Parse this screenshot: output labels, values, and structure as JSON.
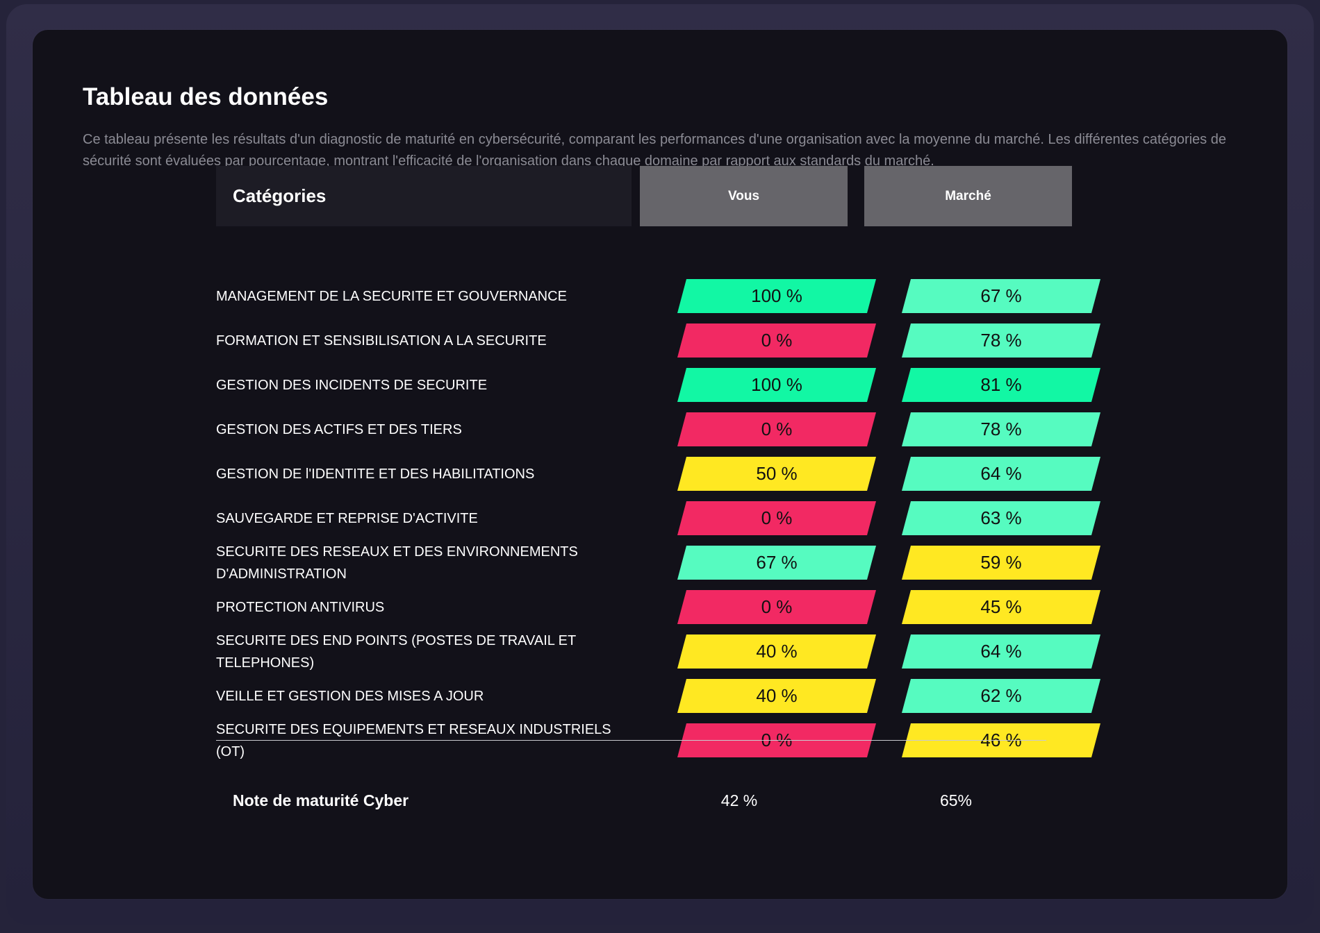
{
  "title": "Tableau des données",
  "description": "Ce tableau présente les résultats d'un diagnostic de maturité en cybersécurité, comparant les performances d'une organisation avec la moyenne du marché. Les différentes catégories de sécurité sont évaluées par pourcentage, montrant l'efficacité de l'organisation dans chaque domaine par rapport aux standards du marché.",
  "colors": {
    "high": "#12f7a4",
    "good": "#56fbc0",
    "medium": "#ffe822",
    "low": "#f22963"
  },
  "table": {
    "headers": {
      "category": "Catégories",
      "vous": "Vous",
      "marche": "Marché"
    },
    "rows": [
      {
        "label": "MANAGEMENT DE LA SECURITE ET GOUVERNANCE",
        "vous": "100 %",
        "vous_color": "#12f7a4",
        "marche": "67 %",
        "marche_color": "#56fbc0"
      },
      {
        "label": "FORMATION ET SENSIBILISATION A LA SECURITE",
        "vous": "0 %",
        "vous_color": "#f22963",
        "marche": "78 %",
        "marche_color": "#56fbc0"
      },
      {
        "label": "GESTION DES INCIDENTS DE SECURITE",
        "vous": "100 %",
        "vous_color": "#12f7a4",
        "marche": "81 %",
        "marche_color": "#12f7a4"
      },
      {
        "label": "GESTION DES ACTIFS ET DES TIERS",
        "vous": "0 %",
        "vous_color": "#f22963",
        "marche": "78 %",
        "marche_color": "#56fbc0"
      },
      {
        "label": "GESTION DE l'IDENTITE ET DES HABILITATIONS",
        "vous": "50 %",
        "vous_color": "#ffe822",
        "marche": "64 %",
        "marche_color": "#56fbc0"
      },
      {
        "label": "SAUVEGARDE ET REPRISE D'ACTIVITE",
        "vous": "0 %",
        "vous_color": "#f22963",
        "marche": "63 %",
        "marche_color": "#56fbc0"
      },
      {
        "label": "SECURITE DES RESEAUX ET DES ENVIRONNEMENTS D'ADMINISTRATION",
        "vous": "67 %",
        "vous_color": "#56fbc0",
        "marche": "59 %",
        "marche_color": "#ffe822"
      },
      {
        "label": "PROTECTION ANTIVIRUS",
        "vous": "0 %",
        "vous_color": "#f22963",
        "marche": "45 %",
        "marche_color": "#ffe822"
      },
      {
        "label": "SECURITE DES END POINTS (POSTES DE TRAVAIL ET TELEPHONES)",
        "vous": "40 %",
        "vous_color": "#ffe822",
        "marche": "64 %",
        "marche_color": "#56fbc0"
      },
      {
        "label": "VEILLE ET GESTION DES MISES A JOUR",
        "vous": "40 %",
        "vous_color": "#ffe822",
        "marche": "62 %",
        "marche_color": "#56fbc0"
      },
      {
        "label": "SECURITE DES EQUIPEMENTS ET RESEAUX INDUSTRIELS (OT)",
        "vous": "0 %",
        "vous_color": "#f22963",
        "marche": "46 %",
        "marche_color": "#ffe822"
      }
    ],
    "footer": {
      "label": "Note de maturité Cyber",
      "vous": "42 %",
      "marche": "65%"
    }
  }
}
